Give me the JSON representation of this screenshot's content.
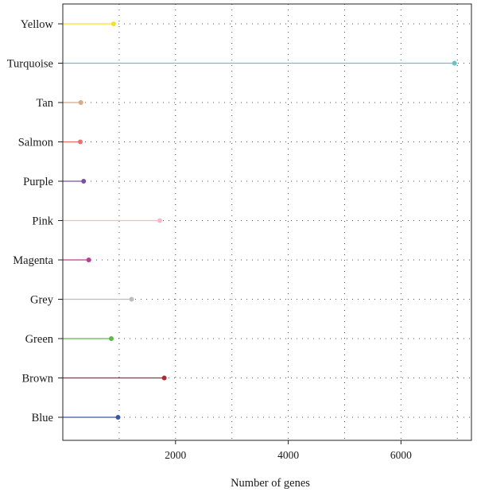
{
  "chart_data": {
    "type": "lollipop",
    "orientation": "horizontal",
    "xlabel": "Number of genes",
    "ylabel": "",
    "title": "",
    "xlim": [
      0,
      7250
    ],
    "x_ticks": [
      2000,
      4000,
      6000
    ],
    "grid": "dotted",
    "categories": [
      "Yellow",
      "Turquoise",
      "Tan",
      "Salmon",
      "Purple",
      "Pink",
      "Magenta",
      "Grey",
      "Green",
      "Brown",
      "Blue"
    ],
    "values": [
      900,
      6950,
      320,
      310,
      370,
      1720,
      460,
      1220,
      860,
      1800,
      980
    ],
    "colors": [
      "#f2e31f",
      "#5cc7c7",
      "#d4aa8a",
      "#ee6e6e",
      "#7b4fa0",
      "#f8b8c8",
      "#bb3d9b",
      "#bdbdbd",
      "#5db846",
      "#b02734",
      "#3d55a3"
    ]
  }
}
